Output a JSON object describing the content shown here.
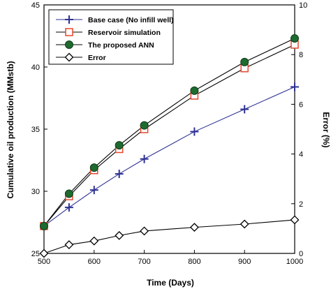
{
  "chart_data": {
    "type": "line",
    "xlabel": "Time (Days)",
    "ylabel": "Cumulative oil production (MMstb)",
    "ylabel_right": "Error (%)",
    "xlim": [
      500,
      1000
    ],
    "ylim": [
      25,
      45
    ],
    "ylim_right": [
      0,
      10
    ],
    "x_ticks": [
      500,
      600,
      700,
      800,
      900,
      1000
    ],
    "y_ticks": [
      25,
      30,
      35,
      40,
      45
    ],
    "y_ticks_right": [
      0,
      2,
      4,
      6,
      8,
      10
    ],
    "x": [
      500,
      550,
      600,
      650,
      700,
      800,
      900,
      1000
    ],
    "legend_position": "top-left",
    "grid": false,
    "series": [
      {
        "name": "Base case (No infill well)",
        "axis": "left",
        "marker": "plus",
        "color": "#2e3192",
        "values": [
          27.2,
          28.7,
          30.1,
          31.4,
          32.6,
          34.8,
          36.6,
          38.4
        ]
      },
      {
        "name": "Reservoir simulation",
        "axis": "left",
        "marker": "square-open",
        "color": "#e8462b",
        "values": [
          27.2,
          29.6,
          31.7,
          33.4,
          35.0,
          37.7,
          39.9,
          41.8
        ]
      },
      {
        "name": "The proposed ANN",
        "axis": "left",
        "marker": "circle-filled",
        "color": "#1e6b2f",
        "values": [
          27.2,
          29.8,
          31.9,
          33.7,
          35.3,
          38.1,
          40.4,
          42.3
        ]
      },
      {
        "name": "Error",
        "axis": "right",
        "marker": "diamond-open",
        "color": "#000000",
        "values": [
          0.0,
          0.35,
          0.5,
          0.72,
          0.9,
          1.05,
          1.18,
          1.35
        ]
      }
    ]
  }
}
